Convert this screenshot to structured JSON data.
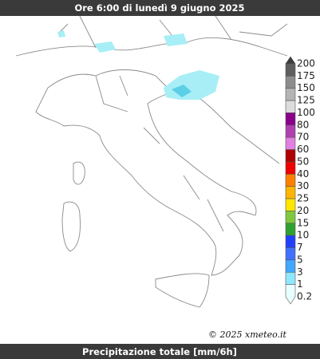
{
  "header": {
    "title": "Ore 6:00 di lunedì 9 giugno 2025"
  },
  "footer": {
    "caption": "Precipitazione totale [mm/6h]"
  },
  "copyright": "© 2025 xmeteo.it",
  "legend": {
    "items": [
      {
        "label": "200",
        "color": "#3c3c3c"
      },
      {
        "label": "175",
        "color": "#5e5e5e"
      },
      {
        "label": "150",
        "color": "#8c8c8c"
      },
      {
        "label": "125",
        "color": "#b4b4b4"
      },
      {
        "label": "100",
        "color": "#dcdcdc"
      },
      {
        "label": "80",
        "color": "#8b008b"
      },
      {
        "label": "70",
        "color": "#b040b0"
      },
      {
        "label": "60",
        "color": "#e080e0"
      },
      {
        "label": "50",
        "color": "#b00000"
      },
      {
        "label": "40",
        "color": "#f00000"
      },
      {
        "label": "30",
        "color": "#ff8000"
      },
      {
        "label": "25",
        "color": "#ffb400"
      },
      {
        "label": "20",
        "color": "#ffe600"
      },
      {
        "label": "15",
        "color": "#80c840"
      },
      {
        "label": "10",
        "color": "#30a030"
      },
      {
        "label": "7",
        "color": "#2040ff"
      },
      {
        "label": "5",
        "color": "#4070ff"
      },
      {
        "label": "3",
        "color": "#40a8ff"
      },
      {
        "label": "1",
        "color": "#90e8ff"
      },
      {
        "label": "0.2",
        "color": "#e8ffff"
      }
    ]
  }
}
